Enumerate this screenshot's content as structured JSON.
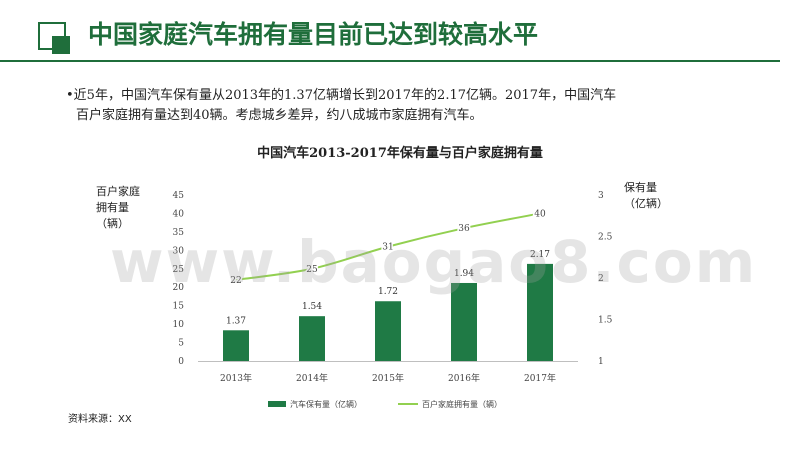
{
  "slide": {
    "title": "中国家庭汽车拥有量目前已达到较高水平",
    "bullet_line1": "•近5年，中国汽车保有量从2013年的1.37亿辆增长到2017年的2.17亿辆。2017年，中国汽车",
    "bullet_line2": "百户家庭拥有量达到40辆。考虑城乡差异，约八成城市家庭拥有汽车。",
    "source": "资料来源：XX",
    "watermark": "www.baogao8.com"
  },
  "colors": {
    "accent": "#1f6e3b",
    "bar": "#1f7a45",
    "line": "#92d050"
  },
  "chart_data": {
    "type": "bar",
    "title": "中国汽车2013-2017年保有量与百户家庭拥有量",
    "categories": [
      "2013年",
      "2014年",
      "2015年",
      "2016年",
      "2017年"
    ],
    "ylabel": "百户家庭拥有量（辆）",
    "ylabel_lines": [
      "百户家庭",
      "拥有量",
      "（辆）"
    ],
    "y2label": "保有量（亿辆）",
    "y2label_lines": [
      "保有量",
      "（亿辆）"
    ],
    "ylim": [
      0,
      45
    ],
    "y_ticks": [
      "0",
      "5",
      "10",
      "15",
      "20",
      "25",
      "30",
      "35",
      "40",
      "45"
    ],
    "y2lim": [
      1,
      3
    ],
    "y2_ticks": [
      "1",
      "1.5",
      "2",
      "2.5",
      "3"
    ],
    "series": [
      {
        "name": "汽车保有量（亿辆）",
        "type": "bar",
        "axis": "right",
        "values": [
          1.37,
          1.54,
          1.72,
          1.94,
          2.17
        ],
        "labels": [
          "1.37",
          "1.54",
          "1.72",
          "1.94",
          "2.17"
        ]
      },
      {
        "name": "百户家庭拥有量（辆）",
        "type": "line",
        "axis": "left",
        "values": [
          22,
          25,
          31,
          36,
          40
        ],
        "labels": [
          "22",
          "25",
          "31",
          "36",
          "40"
        ]
      }
    ],
    "legend": "bottom",
    "grid": false
  }
}
